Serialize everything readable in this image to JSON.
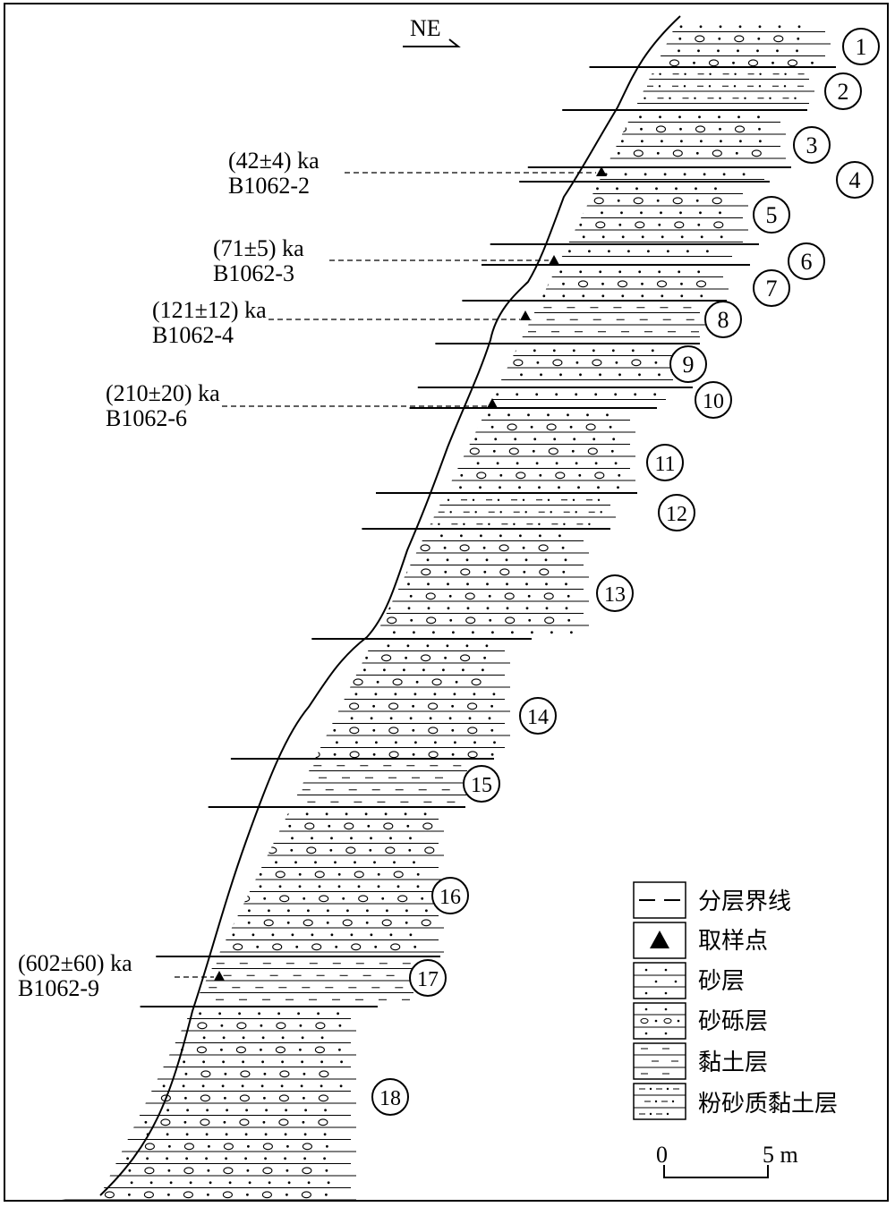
{
  "orientation": {
    "label": "NE"
  },
  "layers": [
    {
      "number": "1",
      "type": "gravelly-sand"
    },
    {
      "number": "2",
      "type": "silty-clay"
    },
    {
      "number": "3",
      "type": "gravelly-sand"
    },
    {
      "number": "4",
      "type": "gravelly-sand"
    },
    {
      "number": "5",
      "type": "gravelly-sand"
    },
    {
      "number": "6",
      "type": "gravelly-sand"
    },
    {
      "number": "7",
      "type": "gravelly-sand"
    },
    {
      "number": "8",
      "type": "clay"
    },
    {
      "number": "9",
      "type": "gravelly-sand"
    },
    {
      "number": "10",
      "type": "gravelly-sand"
    },
    {
      "number": "11",
      "type": "gravelly-sand"
    },
    {
      "number": "12",
      "type": "silty-clay"
    },
    {
      "number": "13",
      "type": "gravelly-sand"
    },
    {
      "number": "14",
      "type": "gravelly-sand"
    },
    {
      "number": "15",
      "type": "clay"
    },
    {
      "number": "16",
      "type": "gravelly-sand"
    },
    {
      "number": "17",
      "type": "clay"
    },
    {
      "number": "18",
      "type": "gravelly-sand"
    }
  ],
  "samples": [
    {
      "age": "(42±4) ka",
      "id": "B1062-2"
    },
    {
      "age": "(71±5) ka",
      "id": "B1062-3"
    },
    {
      "age": "(121±12) ka",
      "id": "B1062-4"
    },
    {
      "age": "(210±20) ka",
      "id": "B1062-6"
    },
    {
      "age": "(602±60) ka",
      "id": "B1062-9"
    }
  ],
  "legend": {
    "items": [
      {
        "label": "分层界线",
        "symbol": "boundary-line"
      },
      {
        "label": "取样点",
        "symbol": "sample-triangle"
      },
      {
        "label": "砂层",
        "symbol": "sand-pattern"
      },
      {
        "label": "砂砾层",
        "symbol": "gravelly-sand-pattern"
      },
      {
        "label": "黏土层",
        "symbol": "clay-pattern"
      },
      {
        "label": "粉砂质黏土层",
        "symbol": "silty-clay-pattern"
      }
    ]
  },
  "scale_bar": {
    "start": "0",
    "end": "5 m"
  }
}
